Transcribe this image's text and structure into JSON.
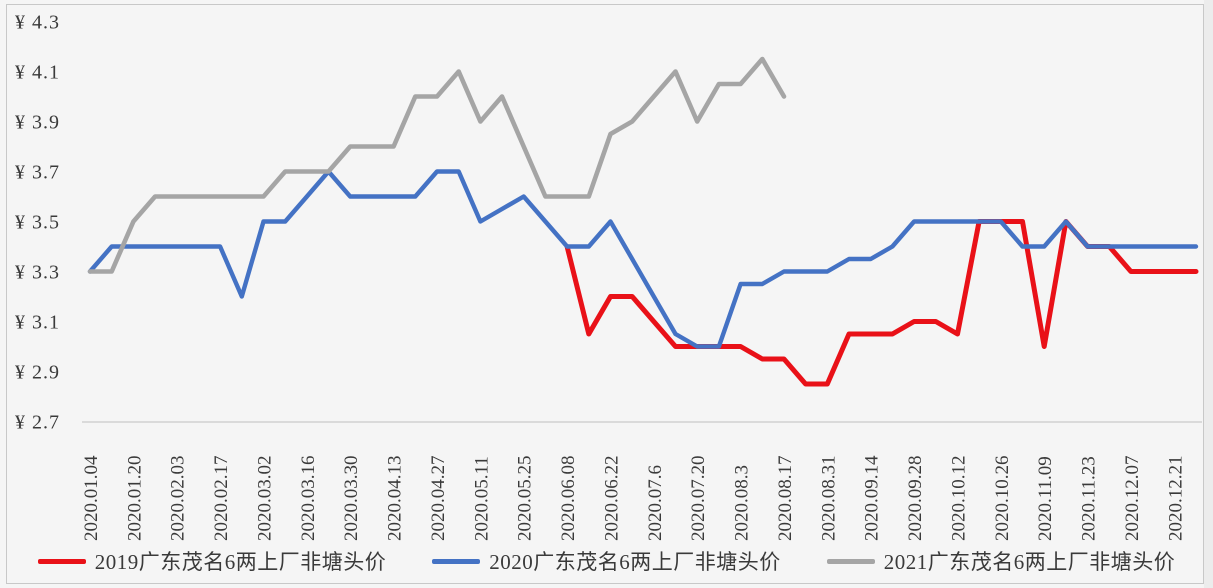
{
  "chart_data": {
    "type": "line",
    "title": "",
    "xlabel": "",
    "ylabel": "",
    "ylim": [
      2.7,
      4.3
    ],
    "grid": false,
    "legend_position": "bottom",
    "points_per_label": 2,
    "n_points": 52,
    "x_labels": [
      "2020.01.04",
      "2020.01.20",
      "2020.02.03",
      "2020.02.17",
      "2020.03.02",
      "2020.03.16",
      "2020.03.30",
      "2020.04.13",
      "2020.04.27",
      "2020.05.11",
      "2020.05.25",
      "2020.06.08",
      "2020.06.22",
      "2020.07.6",
      "2020.07.20",
      "2020.08.3",
      "2020.08.17",
      "2020.08.31",
      "2020.09.14",
      "2020.09.28",
      "2020.10.12",
      "2020.10.26",
      "2020.11.09",
      "2020.11.23",
      "2020.12.07",
      "2020.12.21"
    ],
    "y_ticks": [
      {
        "value": 2.7,
        "label": "¥ 2.7"
      },
      {
        "value": 2.9,
        "label": "¥ 2.9"
      },
      {
        "value": 3.1,
        "label": "¥ 3.1"
      },
      {
        "value": 3.3,
        "label": "¥ 3.3"
      },
      {
        "value": 3.5,
        "label": "¥ 3.5"
      },
      {
        "value": 3.7,
        "label": "¥ 3.7"
      },
      {
        "value": 3.9,
        "label": "¥ 3.9"
      },
      {
        "value": 4.1,
        "label": "¥ 4.1"
      },
      {
        "value": 4.3,
        "label": "¥ 4.3"
      }
    ],
    "series": [
      {
        "name": "2019广东茂名6两上厂非塘头价",
        "color": "#e91118",
        "values": [
          null,
          null,
          null,
          null,
          null,
          null,
          null,
          null,
          null,
          null,
          null,
          null,
          null,
          null,
          null,
          null,
          null,
          null,
          null,
          null,
          null,
          null,
          3.4,
          3.05,
          3.2,
          3.2,
          3.1,
          3.0,
          3.0,
          3.0,
          3.0,
          2.95,
          2.95,
          2.85,
          2.85,
          3.05,
          3.05,
          3.05,
          3.1,
          3.1,
          3.05,
          3.5,
          3.5,
          3.5,
          3.0,
          3.5,
          3.4,
          3.4,
          3.3,
          3.3,
          3.3,
          3.3
        ]
      },
      {
        "name": "2020广东茂名6两上厂非塘头价",
        "color": "#4472c4",
        "values": [
          3.3,
          3.4,
          3.4,
          3.4,
          3.4,
          3.4,
          3.4,
          3.2,
          3.5,
          3.5,
          3.6,
          3.7,
          3.6,
          3.6,
          3.6,
          3.6,
          3.7,
          3.7,
          3.5,
          3.55,
          3.6,
          3.5,
          3.4,
          3.4,
          3.5,
          3.35,
          3.2,
          3.05,
          3.0,
          3.0,
          3.25,
          3.25,
          3.3,
          3.3,
          3.3,
          3.35,
          3.35,
          3.4,
          3.5,
          3.5,
          3.5,
          3.5,
          3.5,
          3.4,
          3.4,
          3.5,
          3.4,
          3.4,
          3.4,
          3.4,
          3.4,
          3.4
        ]
      },
      {
        "name": "2021广东茂名6两上厂非塘头价",
        "color": "#a5a5a5",
        "values": [
          3.3,
          3.3,
          3.5,
          3.6,
          3.6,
          3.6,
          3.6,
          3.6,
          3.6,
          3.7,
          3.7,
          3.7,
          3.8,
          3.8,
          3.8,
          4.0,
          4.0,
          4.1,
          3.9,
          4.0,
          3.8,
          3.6,
          3.6,
          3.6,
          3.85,
          3.9,
          4.0,
          4.1,
          3.9,
          4.05,
          4.05,
          4.15,
          4.0,
          null,
          null,
          null,
          null,
          null,
          null,
          null,
          null,
          null,
          null,
          null,
          null,
          null,
          null,
          null,
          null,
          null,
          null,
          null
        ]
      }
    ]
  }
}
